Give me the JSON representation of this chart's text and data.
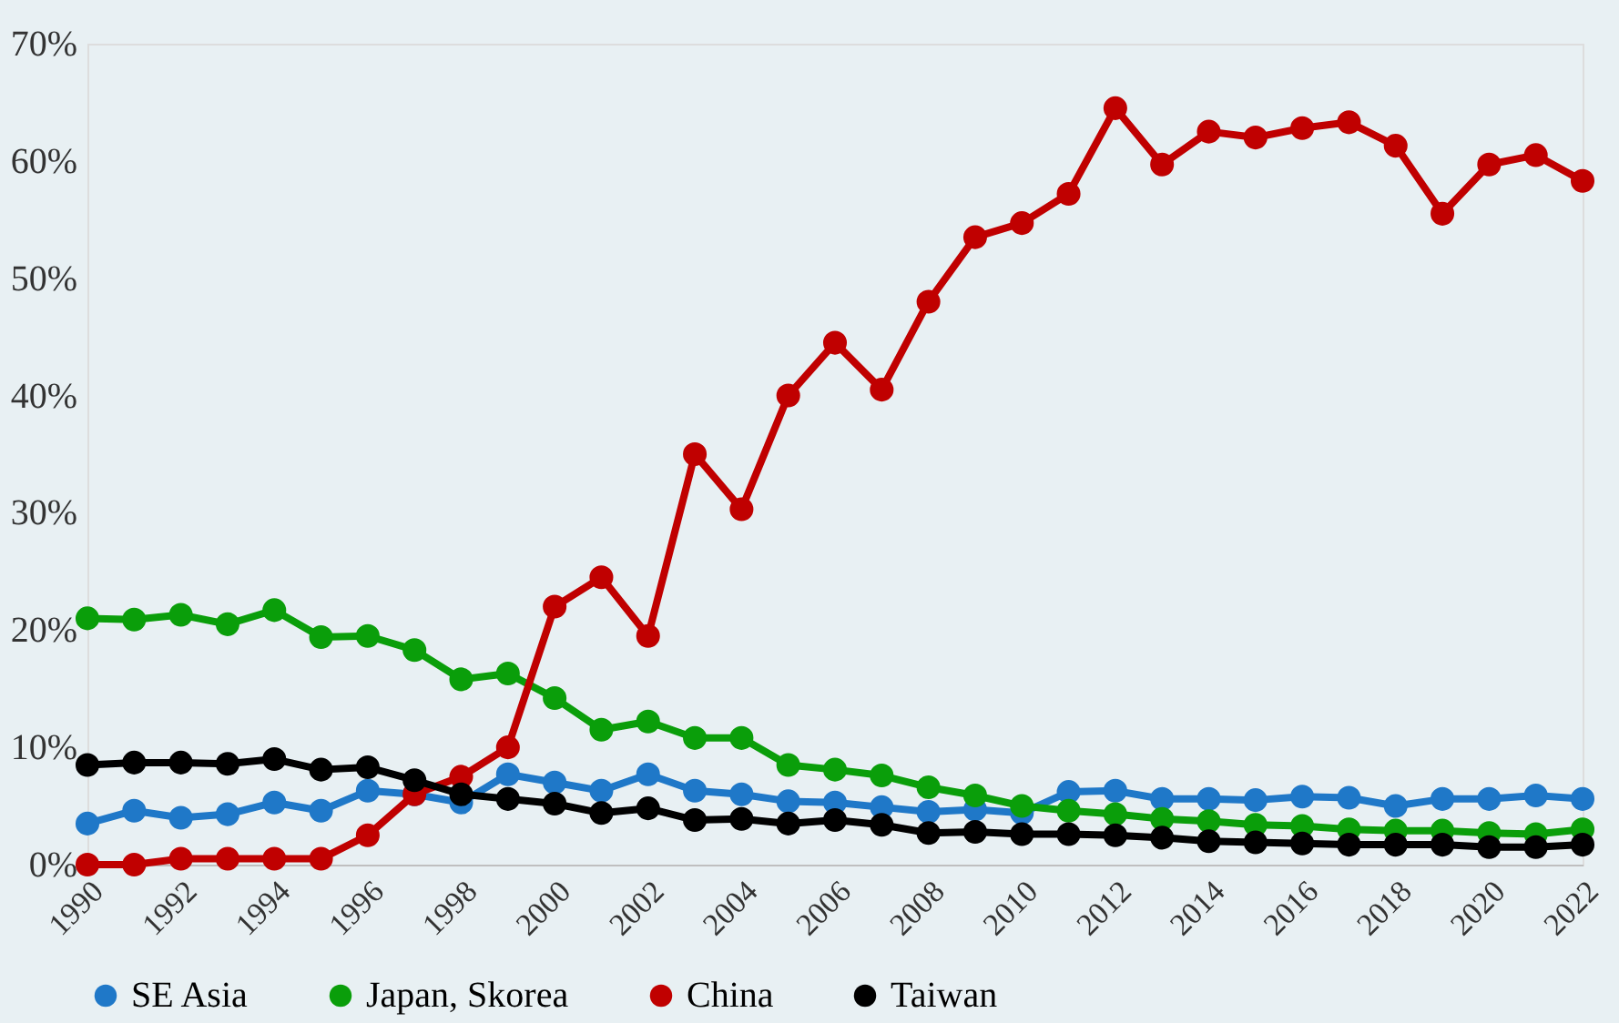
{
  "chart_data": {
    "type": "line",
    "x": [
      1990,
      1991,
      1992,
      1993,
      1994,
      1995,
      1996,
      1997,
      1998,
      1999,
      2000,
      2001,
      2002,
      2003,
      2004,
      2005,
      2006,
      2007,
      2008,
      2009,
      2010,
      2011,
      2012,
      2013,
      2014,
      2015,
      2016,
      2017,
      2018,
      2019,
      2020,
      2021,
      2022
    ],
    "xlim": [
      1990,
      2022
    ],
    "xticks": [
      1990,
      1992,
      1994,
      1996,
      1998,
      2000,
      2002,
      2004,
      2006,
      2008,
      2010,
      2012,
      2014,
      2016,
      2018,
      2020,
      2022
    ],
    "ylim": [
      0,
      70
    ],
    "yticks": [
      {
        "value": 0,
        "label": "0%"
      },
      {
        "value": 10,
        "label": "10%"
      },
      {
        "value": 20,
        "label": "20%"
      },
      {
        "value": 30,
        "label": "30%"
      },
      {
        "value": 40,
        "label": "40%"
      },
      {
        "value": 50,
        "label": "50%"
      },
      {
        "value": 60,
        "label": "60%"
      },
      {
        "value": 70,
        "label": "70%"
      }
    ],
    "grid": false,
    "legend": "bottom",
    "marker": "circle",
    "line_style": "solid",
    "series": [
      {
        "name": "SE Asia",
        "color": "#1f78c8",
        "values": [
          3.5,
          4.6,
          4.0,
          4.3,
          5.3,
          4.6,
          6.3,
          6.0,
          5.3,
          7.7,
          7.0,
          6.3,
          7.7,
          6.3,
          6.0,
          5.4,
          5.3,
          4.9,
          4.5,
          4.7,
          4.4,
          6.2,
          6.3,
          5.6,
          5.6,
          5.5,
          5.8,
          5.7,
          5.0,
          5.6,
          5.6,
          5.9,
          5.6
        ]
      },
      {
        "name": "Japan, Skorea",
        "color": "#0a9e0a",
        "values": [
          21.0,
          20.9,
          21.3,
          20.5,
          21.7,
          19.4,
          19.5,
          18.3,
          15.8,
          16.3,
          14.2,
          11.5,
          12.2,
          10.8,
          10.8,
          8.5,
          8.1,
          7.6,
          6.6,
          5.9,
          5.0,
          4.6,
          4.3,
          3.9,
          3.7,
          3.4,
          3.3,
          3.0,
          2.9,
          2.9,
          2.7,
          2.6,
          3.0
        ]
      },
      {
        "name": "China",
        "color": "#c00000",
        "values": [
          0.0,
          0.0,
          0.5,
          0.5,
          0.5,
          0.5,
          2.5,
          6.0,
          7.5,
          10.0,
          22.0,
          24.5,
          19.5,
          35.0,
          30.3,
          40.0,
          44.5,
          40.5,
          48.0,
          53.5,
          54.7,
          57.2,
          64.5,
          59.7,
          62.5,
          62.0,
          62.8,
          63.3,
          61.3,
          55.5,
          59.7,
          60.5,
          58.3
        ]
      },
      {
        "name": "Taiwan",
        "color": "#000000",
        "values": [
          8.5,
          8.7,
          8.7,
          8.6,
          9.0,
          8.1,
          8.3,
          7.2,
          6.0,
          5.6,
          5.2,
          4.4,
          4.8,
          3.8,
          3.9,
          3.5,
          3.8,
          3.4,
          2.7,
          2.8,
          2.6,
          2.6,
          2.5,
          2.3,
          2.0,
          1.9,
          1.8,
          1.7,
          1.7,
          1.7,
          1.5,
          1.5,
          1.7
        ]
      }
    ]
  }
}
